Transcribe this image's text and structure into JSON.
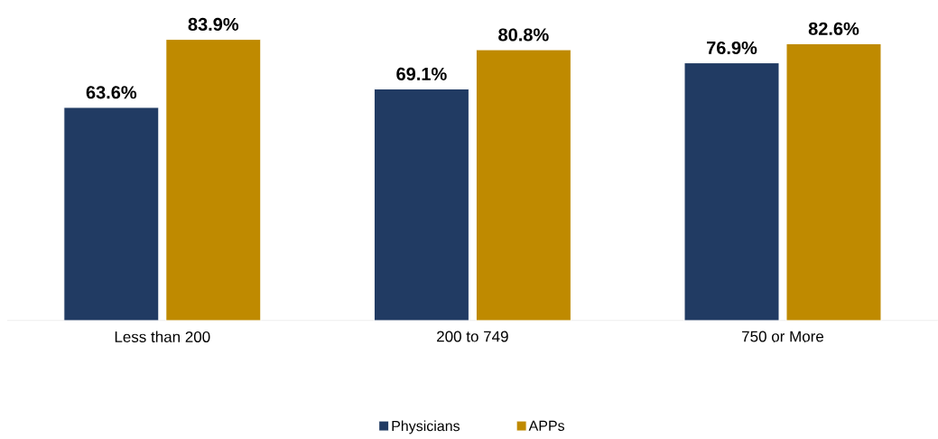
{
  "chart_data": {
    "type": "bar",
    "categories": [
      "Less than 200",
      "200 to 749",
      "750 or More"
    ],
    "series": [
      {
        "name": "Physicians",
        "color": "#213b63",
        "values": [
          63.6,
          69.1,
          76.9
        ],
        "value_labels": [
          "63.6%",
          "69.1%",
          "76.9%"
        ]
      },
      {
        "name": "APPs",
        "color": "#bf8a00",
        "values": [
          83.9,
          80.8,
          82.6
        ],
        "value_labels": [
          "83.9%",
          "80.8%",
          "82.6%"
        ]
      }
    ],
    "legend": "bottom"
  }
}
